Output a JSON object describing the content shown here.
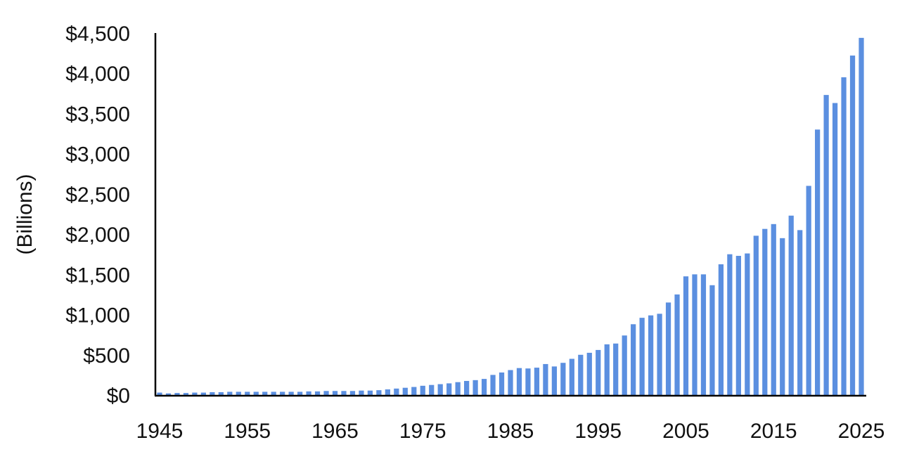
{
  "chart_data": {
    "type": "bar",
    "title": "",
    "xlabel": "",
    "ylabel": "(Billions)",
    "x_start": 1945,
    "x_end": 2025,
    "xticks": [
      1945,
      1955,
      1965,
      1975,
      1985,
      1995,
      2005,
      2015,
      2025
    ],
    "ylim": [
      0,
      4500
    ],
    "yticks": [
      "$0",
      "$500",
      "$1,000",
      "$1,500",
      "$2,000",
      "$2,500",
      "$3,000",
      "$3,500",
      "$4,000",
      "$4,500"
    ],
    "ytick_values": [
      0,
      500,
      1000,
      1500,
      2000,
      2500,
      3000,
      3500,
      4000,
      4500
    ],
    "grid": false,
    "bar_color": "#5b8fe0",
    "axis_color": "#000000",
    "categories": [
      1945,
      1946,
      1947,
      1948,
      1949,
      1950,
      1951,
      1952,
      1953,
      1954,
      1955,
      1956,
      1957,
      1958,
      1959,
      1960,
      1961,
      1962,
      1963,
      1964,
      1965,
      1966,
      1967,
      1968,
      1969,
      1970,
      1971,
      1972,
      1973,
      1974,
      1975,
      1976,
      1977,
      1978,
      1979,
      1980,
      1981,
      1982,
      1983,
      1984,
      1985,
      1986,
      1987,
      1988,
      1989,
      1990,
      1991,
      1992,
      1993,
      1994,
      1995,
      1996,
      1997,
      1998,
      1999,
      2000,
      2001,
      2002,
      2003,
      2004,
      2005,
      2006,
      2007,
      2008,
      2009,
      2010,
      2011,
      2012,
      2013,
      2014,
      2015,
      2016,
      2017,
      2018,
      2019,
      2020,
      2021,
      2022,
      2023,
      2024,
      2025
    ],
    "values": [
      30,
      20,
      25,
      25,
      30,
      30,
      35,
      35,
      40,
      40,
      40,
      40,
      40,
      40,
      40,
      40,
      40,
      45,
      45,
      50,
      50,
      50,
      50,
      55,
      55,
      60,
      70,
      80,
      90,
      100,
      115,
      125,
      135,
      145,
      160,
      175,
      185,
      200,
      250,
      280,
      310,
      335,
      330,
      340,
      385,
      355,
      400,
      450,
      500,
      525,
      560,
      630,
      640,
      740,
      880,
      960,
      990,
      1010,
      1150,
      1250,
      1475,
      1500,
      1500,
      1365,
      1625,
      1750,
      1730,
      1760,
      1980,
      2065,
      2125,
      1950,
      2230,
      2050,
      2600,
      3300,
      3730,
      3630,
      3950,
      4220,
      4440
    ]
  }
}
